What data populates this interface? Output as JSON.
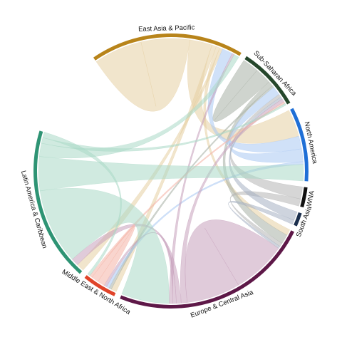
{
  "chart_data": {
    "type": "chord",
    "title": "",
    "groups": [
      {
        "name": "East Asia & Pacific",
        "color": "#b8841a",
        "ribbon_color": "#e6cfa2",
        "share": 0.192
      },
      {
        "name": "Sub-Saharan Africa",
        "color": "#25472b",
        "ribbon_color": "#a8b0a6",
        "share": 0.079
      },
      {
        "name": "North America",
        "color": "#1f6fd6",
        "ribbon_color": "#a9c8f2",
        "share": 0.093
      },
      {
        "name": "WNA",
        "color": "#111111",
        "ribbon_color": "#b5b5b5",
        "share": 0.025
      },
      {
        "name": "South Asia",
        "color": "#1b2f4d",
        "ribbon_color": "#a6b0c2",
        "share": 0.017
      },
      {
        "name": "Europe & Central Asia",
        "color": "#5e1848",
        "ribbon_color": "#c6a0bb",
        "share": 0.252
      },
      {
        "name": "Middle East & North Africa",
        "color": "#e0442a",
        "ribbon_color": "#f4b3a5",
        "share": 0.043
      },
      {
        "name": "Latin America & Caribbean",
        "color": "#2e9474",
        "ribbon_color": "#a9d8c6",
        "share": 0.193
      }
    ],
    "flows": [
      {
        "source": "East Asia & Pacific",
        "target": "East Asia & Pacific",
        "value": 6.5
      },
      {
        "source": "East Asia & Pacific",
        "target": "North America",
        "value": 3.0
      },
      {
        "source": "East Asia & Pacific",
        "target": "Middle East & North Africa",
        "value": 0.6
      },
      {
        "source": "East Asia & Pacific",
        "target": "Europe & Central Asia",
        "value": 0.5
      },
      {
        "source": "East Asia & Pacific",
        "target": "Latin America & Caribbean",
        "value": 0.4
      },
      {
        "source": "Sub-Saharan Africa",
        "target": "Sub-Saharan Africa",
        "value": 2.6
      },
      {
        "source": "Sub-Saharan Africa",
        "target": "Europe & Central Asia",
        "value": 0.8
      },
      {
        "source": "Sub-Saharan Africa",
        "target": "Middle East & North Africa",
        "value": 0.3
      },
      {
        "source": "North America",
        "target": "East Asia & Pacific",
        "value": 1.4
      },
      {
        "source": "North America",
        "target": "Sub-Saharan Africa",
        "value": 1.4
      },
      {
        "source": "North America",
        "target": "Middle East & North Africa",
        "value": 0.3
      },
      {
        "source": "WNA",
        "target": "Sub-Saharan Africa",
        "value": 0.5
      },
      {
        "source": "WNA",
        "target": "Europe & Central Asia",
        "value": 0.3
      },
      {
        "source": "South Asia",
        "target": "Sub-Saharan Africa",
        "value": 0.4
      },
      {
        "source": "South Asia",
        "target": "Europe & Central Asia",
        "value": 0.2
      },
      {
        "source": "Europe & Central Asia",
        "target": "Europe & Central Asia",
        "value": 4.5
      },
      {
        "source": "Europe & Central Asia",
        "target": "Sub-Saharan Africa",
        "value": 0.5
      },
      {
        "source": "Europe & Central Asia",
        "target": "Latin America & Caribbean",
        "value": 0.4
      },
      {
        "source": "Europe & Central Asia",
        "target": "Middle East & North Africa",
        "value": 0.3
      },
      {
        "source": "Europe & Central Asia",
        "target": "East Asia & Pacific",
        "value": 0.3
      },
      {
        "source": "Middle East & North Africa",
        "target": "Middle East & North Africa",
        "value": 0.8
      },
      {
        "source": "Middle East & North Africa",
        "target": "Sub-Saharan Africa",
        "value": 0.3
      },
      {
        "source": "Latin America & Caribbean",
        "target": "Europe & Central Asia",
        "value": 4.0
      },
      {
        "source": "Latin America & Caribbean",
        "target": "North America",
        "value": 1.8
      },
      {
        "source": "Latin America & Caribbean",
        "target": "East Asia & Pacific",
        "value": 0.7
      },
      {
        "source": "Latin America & Caribbean",
        "target": "Sub-Saharan Africa",
        "value": 0.3
      },
      {
        "source": "Latin America & Caribbean",
        "target": "Middle East & North Africa",
        "value": 0.3
      }
    ]
  }
}
